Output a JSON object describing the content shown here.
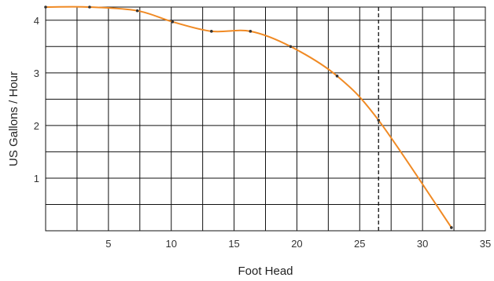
{
  "chart_data": {
    "type": "line",
    "xlabel": "Foot Head",
    "ylabel": "US Gallons / Hour",
    "xlim": [
      0,
      35
    ],
    "ylim": [
      0,
      4.25
    ],
    "x_ticks": [
      "5",
      "10",
      "15",
      "20",
      "25",
      "30",
      "35"
    ],
    "y_ticks": [
      "1",
      "2",
      "3",
      "4"
    ],
    "grid": true,
    "reference_line_x": 26.5,
    "series": [
      {
        "color": "#f08a24",
        "points": [
          {
            "x": 0,
            "y": 4.25
          },
          {
            "x": 3.5,
            "y": 4.25
          },
          {
            "x": 7.3,
            "y": 4.18
          },
          {
            "x": 10.1,
            "y": 3.97
          },
          {
            "x": 13.2,
            "y": 3.79
          },
          {
            "x": 16.3,
            "y": 3.79
          },
          {
            "x": 19.5,
            "y": 3.5
          },
          {
            "x": 23.2,
            "y": 2.94
          },
          {
            "x": 26.5,
            "y": 2.1
          },
          {
            "x": 32.3,
            "y": 0.06
          }
        ]
      }
    ]
  }
}
